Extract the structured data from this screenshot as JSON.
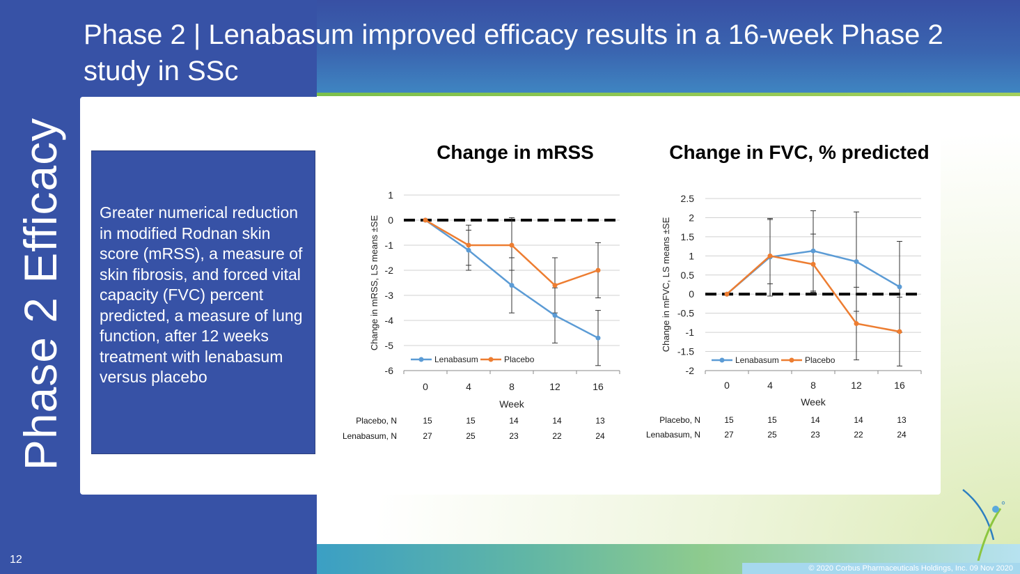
{
  "slide": {
    "title": "Phase 2  |  Lenabasum improved efficacy results in a 16-week Phase 2 study in SSc",
    "section_label": "Phase 2 Efficacy",
    "page_number": "12",
    "summary_text": "Greater numerical reduction in modified Rodnan skin score (mRSS), a measure of skin fibrosis, and forced vital capacity (FVC) percent predicted, a measure of lung function, after 12 weeks treatment with lenabasum versus placebo",
    "footer": "© 2020 Corbus Pharmaceuticals Holdings, Inc. 09 Nov 2020"
  },
  "colors": {
    "panel_blue": "#3752a6",
    "lenabasum": "#5b9bd5",
    "placebo": "#ed7d31",
    "accent_green": "#7cc04b",
    "logo_blue": "#2d7fc0"
  },
  "chart_data": [
    {
      "type": "line",
      "title": "Change in mRSS",
      "xlabel": "Week",
      "ylabel": "Change in mRSS, LS means ±SE",
      "x": [
        0,
        4,
        8,
        12,
        16
      ],
      "x_tick_labels": [
        "0",
        "4",
        "8",
        "12",
        "16"
      ],
      "ylim": [
        -6,
        1
      ],
      "y_ticks": [
        1,
        0,
        -1,
        -2,
        -3,
        -4,
        -5,
        -6
      ],
      "y_tick_labels": [
        "1",
        "0",
        "-1",
        "-2",
        "-3",
        "-4",
        "-5",
        "-6"
      ],
      "grid": true,
      "legend_position": "bottom-left",
      "reference_line": 0,
      "series": [
        {
          "name": "Lenabasum",
          "values": [
            0,
            -1.2,
            -2.6,
            -3.8,
            -4.7
          ],
          "err_low": [
            0,
            -2.0,
            -3.7,
            -4.9,
            -5.8
          ],
          "err_high": [
            0,
            -0.4,
            -1.5,
            -2.7,
            -3.6
          ]
        },
        {
          "name": "Placebo",
          "values": [
            0,
            -1.0,
            -1.0,
            -2.6,
            -2.0
          ],
          "err_low": [
            0,
            -1.8,
            -2.0,
            -3.7,
            -3.1
          ],
          "err_high": [
            0,
            -0.2,
            0.1,
            -1.5,
            -0.9
          ]
        }
      ],
      "n_table": {
        "rows": [
          {
            "label": "Placebo, N",
            "values": [
              "15",
              "15",
              "14",
              "14",
              "13"
            ]
          },
          {
            "label": "Lenabasum, N",
            "values": [
              "27",
              "25",
              "23",
              "22",
              "24"
            ]
          }
        ]
      }
    },
    {
      "type": "line",
      "title": "Change in FVC, % predicted",
      "xlabel": "Week",
      "ylabel": "Change in mFVC, LS means ±SE",
      "x": [
        0,
        4,
        8,
        12,
        16
      ],
      "x_tick_labels": [
        "0",
        "4",
        "8",
        "12",
        "16"
      ],
      "ylim": [
        -2,
        2.5
      ],
      "y_ticks": [
        2.5,
        2,
        1.5,
        1,
        0.5,
        0,
        -0.5,
        -1,
        -1.5,
        -2
      ],
      "y_tick_labels": [
        "2.5",
        "2",
        "1.5",
        "1",
        "0.5",
        "0",
        "-0.5",
        "-1",
        "-1.5",
        "-2"
      ],
      "grid": true,
      "legend_position": "bottom-left",
      "reference_line": 0,
      "series": [
        {
          "name": "Lenabasum",
          "values": [
            0,
            0.97,
            1.13,
            0.85,
            0.19
          ],
          "err_low": [
            0,
            -0.05,
            0.08,
            -0.45,
            -1.0
          ],
          "err_high": [
            0,
            1.95,
            2.18,
            2.15,
            1.38
          ]
        },
        {
          "name": "Placebo",
          "values": [
            0,
            1.0,
            0.78,
            -0.77,
            -0.98
          ],
          "err_low": [
            0,
            0.27,
            0.05,
            -1.72,
            -1.88
          ],
          "err_high": [
            0,
            1.98,
            1.57,
            0.18,
            -0.08
          ]
        }
      ],
      "n_table": {
        "rows": [
          {
            "label": "Placebo, N",
            "values": [
              "15",
              "15",
              "14",
              "14",
              "13"
            ]
          },
          {
            "label": "Lenabasum, N",
            "values": [
              "27",
              "25",
              "23",
              "22",
              "24"
            ]
          }
        ]
      }
    }
  ]
}
